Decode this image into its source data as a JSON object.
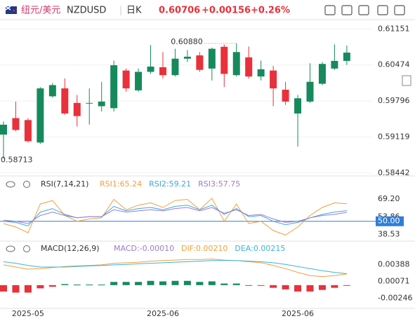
{
  "header": {
    "pair_cn": "纽元/美元",
    "symbol": "NZDUSD",
    "period": "日K",
    "price": "0.60706",
    "change": "+0.00156",
    "change_pct": "+0.26%"
  },
  "chart_data": [
    {
      "type": "candlestick",
      "categories": [
        null,
        null,
        "2025-05",
        null,
        null,
        null,
        null,
        null,
        null,
        null,
        null,
        null,
        null,
        "2025-06",
        null,
        null,
        null,
        null,
        null,
        null,
        null,
        null,
        null,
        null,
        "2025-06",
        null,
        null,
        null,
        null
      ],
      "open": [
        0.59164,
        0.59474,
        0.59437,
        0.59015,
        0.59884,
        0.60033,
        0.5976,
        0.59748,
        0.59698,
        0.59661,
        0.60369,
        0.59996,
        0.60344,
        0.60431,
        0.60282,
        0.60592,
        0.60654,
        0.60406,
        0.60816,
        0.60282,
        0.60617,
        0.60257,
        0.60369,
        0.60008,
        0.59561,
        0.59785,
        0.6012,
        0.60406,
        0.6055
      ],
      "high": [
        0.59412,
        0.59785,
        0.59474,
        0.60058,
        0.60133,
        0.60219,
        0.59909,
        0.60033,
        0.60157,
        0.60555,
        0.60406,
        0.60406,
        0.6085,
        0.60716,
        0.60778,
        0.60754,
        0.60716,
        0.608,
        0.6086,
        0.6088,
        0.6082,
        0.60555,
        0.60456,
        0.60157,
        0.59909,
        0.60505,
        0.6053,
        0.6086,
        0.6084
      ],
      "low": [
        0.58713,
        0.59226,
        0.59015,
        0.5899,
        0.59859,
        0.59536,
        0.59313,
        0.5935,
        0.59599,
        0.59599,
        0.59971,
        0.59971,
        0.60306,
        0.6022,
        0.60257,
        0.6053,
        0.60344,
        0.60182,
        0.60058,
        0.60257,
        0.6022,
        0.60182,
        0.59698,
        0.59723,
        0.5894,
        0.5976,
        0.60095,
        0.60381,
        0.60474
      ],
      "close": [
        0.5935,
        0.59251,
        0.5904,
        0.60033,
        0.60095,
        0.59561,
        0.59512,
        0.5976,
        0.59785,
        0.60468,
        0.60033,
        0.60344,
        0.60443,
        0.60282,
        0.60592,
        0.60629,
        0.60381,
        0.60778,
        0.60306,
        0.60716,
        0.60257,
        0.60393,
        0.60033,
        0.59785,
        0.59847,
        0.60157,
        0.60493,
        0.6055,
        0.60706
      ],
      "up_color": "#168a5c",
      "down_color": "#e8313a",
      "ylim": [
        0.584,
        0.613
      ],
      "yticks": [
        0.61151,
        0.60474,
        0.59796,
        0.59119,
        0.58442
      ],
      "grid": true,
      "max_label": {
        "value": 0.6088,
        "label": "0.60880"
      },
      "min_label": {
        "value": 0.58713,
        "label": "0.58713"
      }
    },
    {
      "type": "line",
      "title": "RSI(7,14,21)",
      "series": [
        {
          "name": "RSI1:65.24",
          "color": "#f0a03c",
          "values": [
            48,
            45,
            40,
            65,
            68,
            55,
            50,
            52,
            53,
            69,
            60,
            64,
            66,
            62,
            68,
            69,
            60,
            70,
            50,
            65,
            48,
            50,
            42,
            38,
            45,
            55,
            62,
            66,
            65.24
          ]
        },
        {
          "name": "RSI2:59.21",
          "color": "#3aa8e0",
          "values": [
            50,
            49,
            46,
            58,
            61,
            56,
            53,
            54,
            54,
            63,
            59,
            61,
            62,
            60,
            63,
            64,
            60,
            64,
            56,
            61,
            54,
            55,
            50,
            47,
            49,
            53,
            56,
            58,
            59.21
          ]
        },
        {
          "name": "RSI3:57.75",
          "color": "#9a7ccf",
          "values": [
            51,
            50,
            48,
            55,
            58,
            55,
            53,
            54,
            54,
            60,
            58,
            59,
            60,
            59,
            61,
            62,
            59,
            62,
            57,
            60,
            55,
            56,
            52,
            49,
            50,
            53,
            55,
            56,
            57.75
          ]
        }
      ],
      "ylim": [
        34,
        76
      ],
      "yticks": [
        {
          "value": 69.2,
          "label": "69.20"
        },
        53.86,
        {
          "value": 50,
          "label": "50.00"
        },
        38.53
      ],
      "reference_line": 50,
      "reference_color": "#2f7ed8"
    },
    {
      "type": "macd",
      "title": "MACD(12,26,9)",
      "histogram": {
        "name": "MACD:-0.00010",
        "up_color": "#168a5c",
        "down_color": "#e8313a",
        "values": [
          -0.0012,
          -0.0014,
          -0.0014,
          -0.0006,
          -0.0003,
          0.0002,
          0.0001,
          0.0001,
          0.0001,
          0.0006,
          0.0006,
          0.0006,
          0.0008,
          0.0007,
          0.0008,
          0.0008,
          0.0006,
          0.0007,
          0.0003,
          0.0003,
          -0.0001,
          -0.0001,
          -0.0005,
          -0.0008,
          -0.0012,
          -0.0012,
          -0.0009,
          -0.0005,
          -0.0001
        ]
      },
      "series": [
        {
          "name": "DIF:0.00210",
          "color": "#f0a03c",
          "values": [
            0.0038,
            0.0034,
            0.003,
            0.0031,
            0.0033,
            0.0035,
            0.0036,
            0.0037,
            0.0038,
            0.0041,
            0.0042,
            0.0043,
            0.0045,
            0.0046,
            0.0047,
            0.0048,
            0.0048,
            0.0049,
            0.0047,
            0.0046,
            0.0044,
            0.0042,
            0.0037,
            0.0031,
            0.0024,
            0.0018,
            0.0016,
            0.0018,
            0.0021
          ]
        },
        {
          "name": "DEA:0.00215",
          "color": "#3ab4d8",
          "values": [
            0.0044,
            0.0041,
            0.0037,
            0.0034,
            0.0034,
            0.0034,
            0.0035,
            0.0036,
            0.0037,
            0.0038,
            0.0039,
            0.004,
            0.0041,
            0.0042,
            0.0043,
            0.0044,
            0.0045,
            0.0046,
            0.0046,
            0.0046,
            0.0045,
            0.0044,
            0.0042,
            0.0039,
            0.0035,
            0.0031,
            0.0027,
            0.0024,
            0.00215
          ]
        }
      ],
      "ylim": [
        -0.0041,
        0.0055
      ],
      "yticks": [
        0.00388,
        0.00071,
        -0.00246
      ]
    }
  ]
}
